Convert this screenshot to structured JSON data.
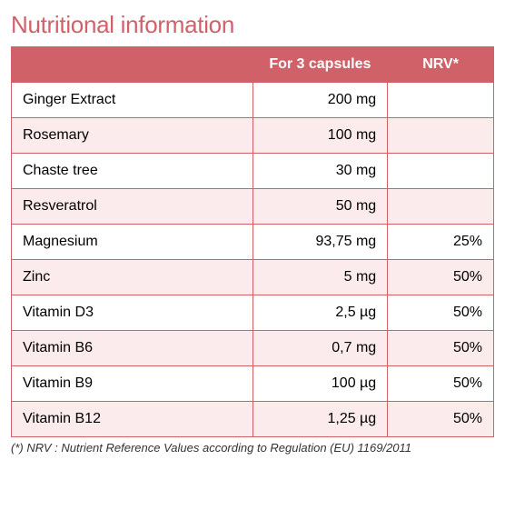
{
  "title": "Nutritional information",
  "title_color": "#d16168",
  "header_bg": "#d16168",
  "header_fg": "#ffffff",
  "border_color": "#d16168",
  "row_alt_bg": "#fbebec",
  "row_bg": "#ffffff",
  "columns": [
    "",
    "For 3 capsules",
    "NRV*"
  ],
  "rows": [
    {
      "name": "Ginger Extract",
      "value": "200 mg",
      "nrv": ""
    },
    {
      "name": "Rosemary",
      "value": "100 mg",
      "nrv": ""
    },
    {
      "name": "Chaste tree",
      "value": "30 mg",
      "nrv": ""
    },
    {
      "name": "Resveratrol",
      "value": "50 mg",
      "nrv": ""
    },
    {
      "name": "Magnesium",
      "value": "93,75 mg",
      "nrv": "25%"
    },
    {
      "name": "Zinc",
      "value": "5 mg",
      "nrv": "50%"
    },
    {
      "name": "Vitamin D3",
      "value": "2,5 µg",
      "nrv": "50%"
    },
    {
      "name": "Vitamin B6",
      "value": "0,7 mg",
      "nrv": "50%"
    },
    {
      "name": "Vitamin B9",
      "value": "100 µg",
      "nrv": "50%"
    },
    {
      "name": "Vitamin B12",
      "value": "1,25 µg",
      "nrv": "50%"
    }
  ],
  "footnote": "(*) NRV : Nutrient Reference Values according to Regulation (EU) 1169/2011"
}
